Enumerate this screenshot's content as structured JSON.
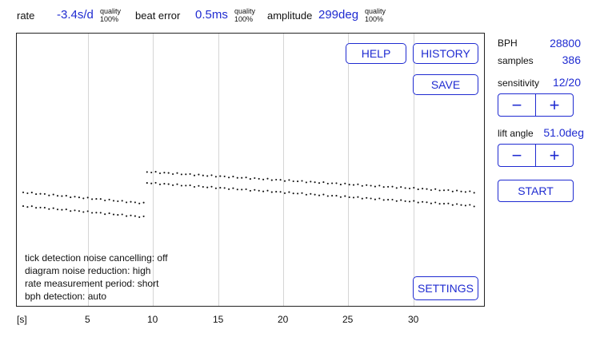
{
  "measurements": {
    "rate": {
      "label": "rate",
      "value": "-3.4s/d",
      "quality_label": "quality",
      "quality_value": "100%"
    },
    "beat_error": {
      "label": "beat error",
      "value": "0.5ms",
      "quality_label": "quality",
      "quality_value": "100%"
    },
    "amplitude": {
      "label": "amplitude",
      "value": "299deg",
      "quality_label": "quality",
      "quality_value": "100%"
    }
  },
  "buttons": {
    "help": "HELP",
    "history": "HISTORY",
    "save": "SAVE",
    "settings": "SETTINGS",
    "start": "START"
  },
  "info": {
    "noise_cancelling": "tick detection noise cancelling:    off",
    "diagram_noise": "diagram noise reduction:     high",
    "rate_period": "rate measurement period:    short",
    "bph_detection": "bph detection:    auto"
  },
  "x_axis": {
    "unit": "[s]",
    "ticks": [
      "5",
      "10",
      "15",
      "20",
      "25",
      "30"
    ]
  },
  "sidebar": {
    "bph_label": "BPH",
    "bph_value": "28800",
    "samples_label": "samples",
    "samples_value": "386",
    "sensitivity_label": "sensitivity",
    "sensitivity_value": "12/20",
    "lift_angle_label": "lift angle",
    "lift_angle_value": "51.0deg",
    "minus_symbol": "−",
    "plus_symbol": "+"
  },
  "colors": {
    "accent": "#1f2bd1",
    "dots": "#111111"
  },
  "trace": {
    "segment1": {
      "t_start": 0,
      "t_end": 9.3,
      "upper_start": 0.58,
      "upper_end": 0.62,
      "lower_start": 0.63,
      "lower_end": 0.67
    },
    "segment2": {
      "t_start": 9.5,
      "t_end": 34.9,
      "upper_start": 0.505,
      "upper_end": 0.58,
      "lower_start": 0.545,
      "lower_end": 0.63
    }
  }
}
